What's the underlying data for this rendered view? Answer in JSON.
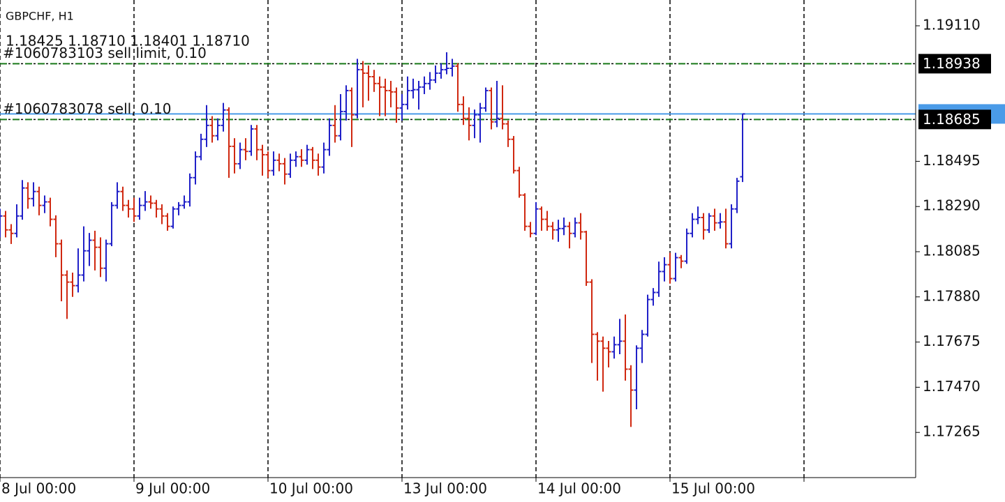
{
  "chart_data": {
    "type": "ohlc",
    "title": "GBPCHF, H1",
    "subtitle": "1.18425 1.18710 1.18401 1.18710",
    "up_color": "#2020c8",
    "down_color": "#d02810",
    "grid": true,
    "xlim": [
      0,
      164
    ],
    "xticks": [
      {
        "value": 0,
        "label": "8 Jul 00:00"
      },
      {
        "value": 24,
        "label": "9 Jul 00:00"
      },
      {
        "value": 48,
        "label": "10 Jul 00:00"
      },
      {
        "value": 72,
        "label": "13 Jul 00:00"
      },
      {
        "value": 96,
        "label": "14 Jul 00:00"
      },
      {
        "value": 120,
        "label": "15 Jul 00:00"
      },
      {
        "value": 144,
        "label": null
      }
    ],
    "ylim": [
      1.1706,
      1.19227
    ],
    "yticks": [
      {
        "value": 1.1911,
        "label": "1.19110"
      },
      1.18495,
      {
        "value": 1.1829,
        "label": "1.18290"
      },
      1.18085,
      {
        "value": 1.1788,
        "label": "1.17880"
      },
      1.17675,
      {
        "value": 1.1747,
        "label": "1.17470"
      },
      1.17265
    ],
    "orders": [
      {
        "label": "#1060783103 sell limit, 0.10",
        "value": 1.18938,
        "color": "#1a7a1a"
      },
      {
        "label": "#1060783078 sell, 0.10",
        "value": 1.18685,
        "color": "#1a7a1a"
      }
    ],
    "bid_color": "#4a9be8",
    "open": [
      1.18184,
      1.18247,
      1.18184,
      1.18168,
      1.18247,
      1.18374,
      1.18326,
      1.18358,
      1.18295,
      1.18311,
      1.18232,
      1.18121,
      1.17979,
      1.17947,
      1.17931,
      1.17979,
      1.18089,
      1.18137,
      1.18105,
      1.1801,
      1.18121,
      1.18295,
      1.18358,
      1.18295,
      1.18279,
      1.18247,
      1.18295,
      1.18311,
      1.18305,
      1.18279,
      1.18247,
      1.182,
      1.18279,
      1.18295,
      1.18311,
      1.18421,
      1.18516,
      1.18595,
      1.18658,
      1.18611,
      1.18658,
      1.18728,
      1.18563,
      1.18484,
      1.18548,
      1.1854,
      1.18642,
      1.18548,
      1.18525,
      1.18453,
      1.185,
      1.18484,
      1.18437,
      1.185,
      1.18516,
      1.185,
      1.18548,
      1.185,
      1.18469,
      1.18548,
      1.18658,
      1.18611,
      1.18721,
      1.18816,
      1.18706,
      1.18911,
      1.18895,
      1.18879,
      1.18848,
      1.18832,
      1.18816,
      1.1881,
      1.18737,
      1.18753,
      1.18816,
      1.1882,
      1.18832,
      1.18848,
      1.18864,
      1.18895,
      1.18911,
      1.18917,
      1.18927,
      1.18753,
      1.1869,
      1.18658,
      1.18706,
      1.18737,
      1.18816,
      1.18674,
      1.1869,
      1.18665,
      1.18595,
      1.18453,
      1.18342,
      1.182,
      1.18168,
      1.18279,
      1.18232,
      1.182,
      1.18184,
      1.1819,
      1.182,
      1.18168,
      1.18216,
      1.18175,
      1.17947,
      1.1771,
      1.17679,
      1.17647,
      1.17631,
      1.17663,
      1.17679,
      1.17552,
      1.17457,
      1.17647,
      1.1771,
      1.17868,
      1.179,
      1.17995,
      1.18026,
      1.17963,
      1.18058,
      1.18042,
      1.18168,
      1.18232,
      1.1824,
      1.18184,
      1.18247,
      1.18216,
      1.1822,
      1.18121,
      1.18279,
      1.18425
    ],
    "high": [
      1.1828,
      1.1827,
      1.1821,
      1.183,
      1.1841,
      1.184,
      1.184,
      1.1838,
      1.1834,
      1.1833,
      1.1825,
      1.1814,
      1.18,
      1.1799,
      1.181,
      1.182,
      1.1817,
      1.1818,
      1.1815,
      1.1814,
      1.1831,
      1.184,
      1.1838,
      1.1832,
      1.1833,
      1.1833,
      1.1836,
      1.1834,
      1.1832,
      1.183,
      1.1826,
      1.1829,
      1.1831,
      1.1834,
      1.1844,
      1.1854,
      1.1862,
      1.1875,
      1.187,
      1.1869,
      1.1876,
      1.1874,
      1.186,
      1.1858,
      1.186,
      1.1866,
      1.1866,
      1.1857,
      1.1854,
      1.1854,
      1.1853,
      1.1851,
      1.1853,
      1.1854,
      1.1855,
      1.1857,
      1.1856,
      1.1853,
      1.1858,
      1.1869,
      1.1875,
      1.188,
      1.1884,
      1.1883,
      1.1896,
      1.1895,
      1.1893,
      1.1891,
      1.1888,
      1.1887,
      1.1886,
      1.1883,
      1.188,
      1.1888,
      1.1887,
      1.1886,
      1.1888,
      1.189,
      1.1893,
      1.1894,
      1.1899,
      1.1896,
      1.1894,
      1.1879,
      1.1874,
      1.1873,
      1.1876,
      1.1883,
      1.1883,
      1.1886,
      1.1884,
      1.1868,
      1.1861,
      1.1847,
      1.1835,
      1.1822,
      1.1831,
      1.1829,
      1.1827,
      1.1822,
      1.1823,
      1.1824,
      1.1822,
      1.1824,
      1.1826,
      1.1818,
      1.1796,
      1.1772,
      1.177,
      1.1768,
      1.177,
      1.1778,
      1.178,
      1.1757,
      1.1766,
      1.1773,
      1.1789,
      1.1792,
      1.1804,
      1.1806,
      1.1808,
      1.1808,
      1.1807,
      1.1819,
      1.1826,
      1.1829,
      1.1826,
      1.1826,
      1.1828,
      1.1826,
      1.1828,
      1.183,
      1.1842,
      1.1871
    ],
    "low": [
      1.1815,
      1.1815,
      1.1812,
      1.1815,
      1.1823,
      1.1828,
      1.1829,
      1.1825,
      1.1826,
      1.182,
      1.1806,
      1.1786,
      1.1778,
      1.1788,
      1.179,
      1.1795,
      1.1802,
      1.18,
      1.1797,
      1.1795,
      1.1811,
      1.1828,
      1.1827,
      1.1824,
      1.1822,
      1.1823,
      1.1827,
      1.1828,
      1.1824,
      1.1821,
      1.1818,
      1.1819,
      1.1825,
      1.1828,
      1.1829,
      1.1839,
      1.185,
      1.1856,
      1.1858,
      1.1859,
      1.1863,
      1.1842,
      1.1844,
      1.1846,
      1.185,
      1.1852,
      1.185,
      1.1843,
      1.1842,
      1.1843,
      1.1845,
      1.1839,
      1.1842,
      1.1847,
      1.1847,
      1.1848,
      1.1846,
      1.1843,
      1.1844,
      1.1852,
      1.1858,
      1.1859,
      1.1868,
      1.1856,
      1.1869,
      1.1874,
      1.1877,
      1.1881,
      1.187,
      1.187,
      1.1874,
      1.1867,
      1.1868,
      1.1873,
      1.1878,
      1.1873,
      1.188,
      1.1882,
      1.1885,
      1.1887,
      1.1889,
      1.1888,
      1.1872,
      1.1866,
      1.1859,
      1.186,
      1.1858,
      1.1872,
      1.1864,
      1.1865,
      1.1864,
      1.1856,
      1.1844,
      1.1833,
      1.1818,
      1.1815,
      1.1816,
      1.1818,
      1.1818,
      1.1814,
      1.1813,
      1.1816,
      1.181,
      1.1815,
      1.1814,
      1.1793,
      1.1758,
      1.175,
      1.1745,
      1.1756,
      1.176,
      1.1762,
      1.175,
      1.1729,
      1.1737,
      1.1758,
      1.177,
      1.1784,
      1.1788,
      1.1795,
      1.1794,
      1.1795,
      1.1801,
      1.1803,
      1.1815,
      1.1821,
      1.1814,
      1.1817,
      1.1818,
      1.1819,
      1.181,
      1.181,
      1.1826,
      1.18401
    ],
    "close": [
      1.18247,
      1.18184,
      1.18168,
      1.18247,
      1.18374,
      1.18326,
      1.18358,
      1.18295,
      1.18311,
      1.18232,
      1.18121,
      1.17979,
      1.17947,
      1.17931,
      1.17979,
      1.18089,
      1.18137,
      1.18105,
      1.1801,
      1.18121,
      1.18295,
      1.18358,
      1.18295,
      1.18279,
      1.18247,
      1.18295,
      1.18311,
      1.18305,
      1.18279,
      1.18247,
      1.182,
      1.18279,
      1.18295,
      1.18311,
      1.18421,
      1.18516,
      1.18595,
      1.18658,
      1.18611,
      1.18658,
      1.18728,
      1.18563,
      1.18484,
      1.18548,
      1.1854,
      1.18642,
      1.18548,
      1.18525,
      1.18453,
      1.185,
      1.18484,
      1.18437,
      1.185,
      1.18516,
      1.185,
      1.18548,
      1.185,
      1.18469,
      1.18548,
      1.18658,
      1.18611,
      1.18721,
      1.18816,
      1.18706,
      1.18911,
      1.18895,
      1.18879,
      1.18848,
      1.18832,
      1.18816,
      1.1881,
      1.18737,
      1.18753,
      1.18816,
      1.1882,
      1.18832,
      1.18848,
      1.18864,
      1.18895,
      1.18911,
      1.18917,
      1.18927,
      1.18753,
      1.1869,
      1.18658,
      1.18706,
      1.18737,
      1.18816,
      1.18674,
      1.1869,
      1.18665,
      1.18595,
      1.18453,
      1.18342,
      1.182,
      1.18168,
      1.18279,
      1.18232,
      1.182,
      1.18184,
      1.1819,
      1.182,
      1.18168,
      1.18216,
      1.18175,
      1.17947,
      1.1771,
      1.17679,
      1.17647,
      1.17631,
      1.17663,
      1.17679,
      1.17552,
      1.17457,
      1.17647,
      1.1771,
      1.17868,
      1.179,
      1.17995,
      1.18026,
      1.17963,
      1.18058,
      1.18042,
      1.18168,
      1.18232,
      1.1824,
      1.18184,
      1.18247,
      1.18216,
      1.1822,
      1.18121,
      1.18279,
      1.18405,
      1.1871
    ]
  }
}
